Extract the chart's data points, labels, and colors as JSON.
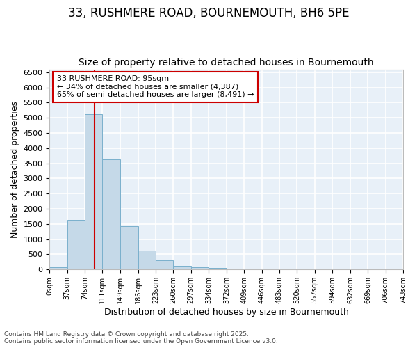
{
  "title_line1": "33, RUSHMERE ROAD, BOURNEMOUTH, BH6 5PE",
  "title_line2": "Size of property relative to detached houses in Bournemouth",
  "xlabel": "Distribution of detached houses by size in Bournemouth",
  "ylabel": "Number of detached properties",
  "bar_color": "#c5d9e8",
  "bar_edge_color": "#7ab0cc",
  "bg_color": "#e8f0f8",
  "grid_color": "white",
  "vline_x": 95,
  "vline_color": "#cc0000",
  "annotation_text": "33 RUSHMERE ROAD: 95sqm\n← 34% of detached houses are smaller (4,387)\n65% of semi-detached houses are larger (8,491) →",
  "annotation_box_facecolor": "white",
  "annotation_box_edgecolor": "#cc0000",
  "bins": [
    0,
    37,
    74,
    111,
    149,
    186,
    223,
    260,
    297,
    334,
    372,
    409,
    446,
    483,
    520,
    557,
    594,
    632,
    669,
    706,
    743
  ],
  "bin_labels": [
    "0sqm",
    "37sqm",
    "74sqm",
    "111sqm",
    "149sqm",
    "186sqm",
    "223sqm",
    "260sqm",
    "297sqm",
    "334sqm",
    "372sqm",
    "409sqm",
    "446sqm",
    "483sqm",
    "520sqm",
    "557sqm",
    "594sqm",
    "632sqm",
    "669sqm",
    "706sqm",
    "743sqm"
  ],
  "bar_heights": [
    75,
    1630,
    5120,
    3620,
    1420,
    620,
    310,
    130,
    65,
    40,
    15,
    10,
    5,
    5,
    2,
    1,
    0,
    0,
    0,
    0
  ],
  "ylim": [
    0,
    6600
  ],
  "yticks": [
    0,
    500,
    1000,
    1500,
    2000,
    2500,
    3000,
    3500,
    4000,
    4500,
    5000,
    5500,
    6000,
    6500
  ],
  "footer_text": "Contains HM Land Registry data © Crown copyright and database right 2025.\nContains public sector information licensed under the Open Government Licence v3.0.",
  "title_fontsize": 12,
  "subtitle_fontsize": 10,
  "footer_fontsize": 6.5
}
